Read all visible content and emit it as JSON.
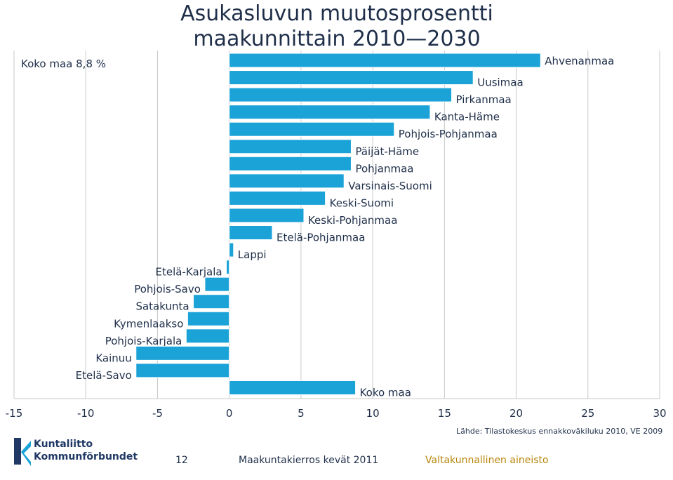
{
  "title_line1": "Asukasluvun muutosprosentti",
  "title_line2": "maakunnittain 2010—2030",
  "koko_note": "Koko maa 8,8 %",
  "source": "Lähde: Tilastokeskus ennakkoväkiluku 2010, VE 2009",
  "footer": {
    "page": "12",
    "event": "Maakuntakierros kevät 2011",
    "tag": "Valtakunnallinen aineisto"
  },
  "logo": {
    "line1": "Kuntaliitto",
    "line2": "Kommunförbundet"
  },
  "colors": {
    "bar": "#1ba3d8",
    "grid": "#c8c8c8",
    "text": "#1f2f4a",
    "accent": "#1f3864",
    "tag": "#b8860b"
  },
  "chart_data": {
    "type": "bar",
    "orientation": "horizontal",
    "xlim": [
      -15,
      30
    ],
    "xticks": [
      "-15",
      "-10",
      "-5",
      "0",
      "5",
      "10",
      "15",
      "20",
      "25",
      "30"
    ],
    "grid": "vertical",
    "categories": [
      "Ahvenanmaa",
      "Uusimaa",
      "Pirkanmaa",
      "Kanta-Häme",
      "Pohjois-Pohjanmaa",
      "Päijät-Häme",
      "Pohjanmaa",
      "Varsinais-Suomi",
      "Keski-Suomi",
      "Keski-Pohjanmaa",
      "Etelä-Pohjanmaa",
      "Lappi",
      "Etelä-Karjala",
      "Pohjois-Savo",
      "Satakunta",
      "Kymenlaakso",
      "Pohjois-Karjala",
      "Kainuu",
      "Etelä-Savo",
      "Koko maa"
    ],
    "values": [
      21.7,
      17.0,
      15.5,
      14.0,
      11.5,
      8.5,
      8.5,
      8.0,
      6.7,
      5.2,
      3.0,
      0.3,
      -0.2,
      -1.7,
      -2.5,
      -2.9,
      -3.0,
      -6.5,
      -6.5,
      8.8
    ]
  }
}
